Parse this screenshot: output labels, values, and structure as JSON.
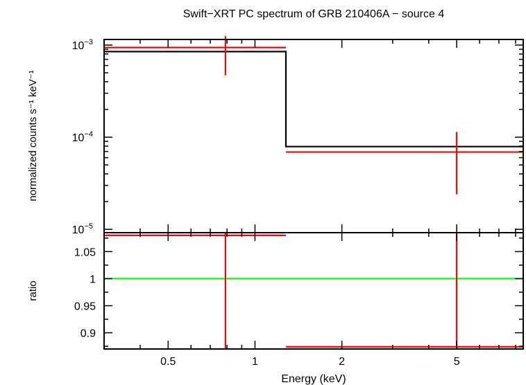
{
  "chart_data": {
    "type": "scatter",
    "title": "Swift−XRT PC spectrum of GRB 210406A − source 4",
    "xlabel": "Energy (keV)",
    "x_scale": "log",
    "xlim": [
      0.3,
      8.5
    ],
    "x_ticks": [
      {
        "value": 0.5,
        "label": "0.5"
      },
      {
        "value": 1,
        "label": "1"
      },
      {
        "value": 2,
        "label": "2"
      },
      {
        "value": 5,
        "label": "5"
      }
    ],
    "panels": [
      {
        "id": "spectrum",
        "ylabel": "normalized counts s⁻¹ keV⁻¹",
        "y_scale": "log",
        "ylim": [
          9.2e-06,
          0.00115
        ],
        "y_ticks": [
          {
            "value": 0.001,
            "base": "10",
            "exp": "−3"
          },
          {
            "value": 0.0001,
            "base": "10",
            "exp": "−4"
          },
          {
            "value": 1e-05,
            "base": "10",
            "exp": "−5"
          }
        ],
        "data": [
          {
            "x": 0.79,
            "xlo": 0.3,
            "xhi": 1.28,
            "y": 0.00094,
            "ylo": 0.00047,
            "yhi": 0.00125
          },
          {
            "x": 5.0,
            "xlo": 1.28,
            "xhi": 8.5,
            "y": 6.9e-05,
            "ylo": 2.4e-05,
            "yhi": 0.000114
          }
        ],
        "model": {
          "x": [
            0.3,
            1.28,
            1.28,
            8.5
          ],
          "y": [
            0.00085,
            0.00085,
            7.9e-05,
            7.9e-05
          ]
        }
      },
      {
        "id": "ratio",
        "ylabel": "ratio",
        "y_scale": "linear",
        "ylim": [
          0.87,
          1.085
        ],
        "y_ticks": [
          {
            "value": 0.9,
            "label": "0.9"
          },
          {
            "value": 0.95,
            "label": "0.95"
          },
          {
            "value": 1,
            "label": "1"
          },
          {
            "value": 1.05,
            "label": "1.05"
          }
        ],
        "data": [
          {
            "x": 0.79,
            "xlo": 0.3,
            "xhi": 1.28,
            "y": 1.08,
            "ylo": 0.87,
            "yhi": 1.085
          },
          {
            "x": 5.0,
            "xlo": 1.28,
            "xhi": 8.5,
            "y": 0.874,
            "ylo": 0.87,
            "yhi": 1.085
          }
        ],
        "reference": 1
      }
    ],
    "colors": {
      "data": "#ff0000",
      "model": "#000000",
      "reference": "#00ff00",
      "frame": "#000000"
    }
  }
}
